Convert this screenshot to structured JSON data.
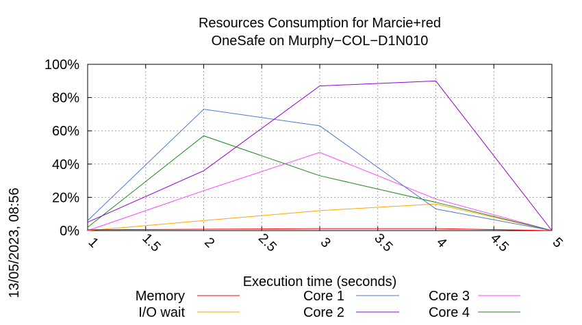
{
  "chart_data": {
    "type": "line",
    "title_line1": "Resources Consumption for Marcie+red",
    "title_line2": "OneSafe on Murphy−COL−D1N010",
    "xlabel": "Execution time (seconds)",
    "side_label": "13/05/2023, 08:56",
    "xlim": [
      1,
      5
    ],
    "ylim": [
      0,
      100
    ],
    "x_ticks": [
      1,
      1.5,
      2,
      2.5,
      3,
      3.5,
      4,
      4.5,
      5
    ],
    "x_tick_labels": [
      "1",
      "1.5",
      "2",
      "2.5",
      "3",
      "3.5",
      "4",
      "4.5",
      "5"
    ],
    "y_ticks": [
      0,
      20,
      40,
      60,
      80,
      100
    ],
    "y_tick_labels": [
      "0%",
      "20%",
      "40%",
      "60%",
      "80%",
      "100%"
    ],
    "grid": true,
    "legend_position": "bottom",
    "x": [
      1,
      2,
      3,
      4,
      5
    ],
    "series": [
      {
        "name": "Memory",
        "color": "#ff0000",
        "values": [
          0.5,
          0.8,
          1.2,
          1.2,
          0
        ]
      },
      {
        "name": "I/O wait",
        "color": "#ffa500",
        "values": [
          0,
          6,
          12,
          16,
          0
        ]
      },
      {
        "name": "Core 1",
        "color": "#4a78d4",
        "values": [
          6,
          73,
          63,
          13,
          0
        ]
      },
      {
        "name": "Core 2",
        "color": "#9400d3",
        "values": [
          5,
          36,
          87,
          90,
          0
        ]
      },
      {
        "name": "Core 3",
        "color": "#ff44ff",
        "values": [
          0,
          24,
          47,
          19,
          0
        ]
      },
      {
        "name": "Core 4",
        "color": "#1a8a1a",
        "values": [
          2,
          57,
          33,
          17,
          0
        ]
      }
    ]
  }
}
